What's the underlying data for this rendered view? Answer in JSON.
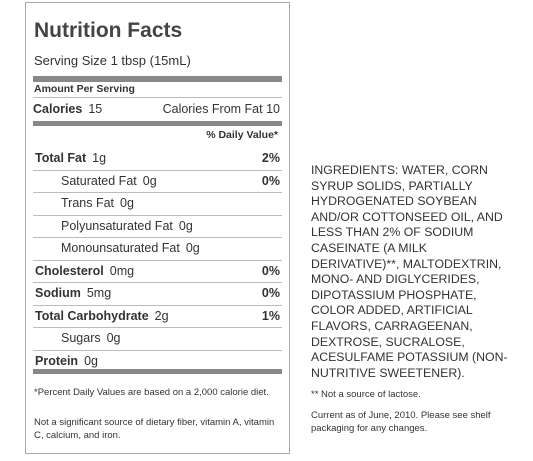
{
  "label": {
    "title": "Nutrition Facts",
    "serving_size": "Serving Size 1 tbsp (15mL)",
    "amount_per_serving": "Amount Per Serving",
    "calories": {
      "name": "Calories",
      "amount": "15"
    },
    "calories_from_fat": "Calories From Fat 10",
    "daily_value_header": "% Daily Value*",
    "nutrients": [
      {
        "name": "Total Fat",
        "amount": "1g",
        "dv": "2%",
        "subs": [
          {
            "name": "Saturated Fat",
            "amount": "0g",
            "dv": "0%"
          },
          {
            "name": "Trans Fat",
            "amount": "0g"
          },
          {
            "name": "Polyunsaturated Fat",
            "amount": "0g"
          },
          {
            "name": "Monounsaturated Fat",
            "amount": "0g"
          }
        ]
      },
      {
        "name": "Cholesterol",
        "amount": "0mg",
        "dv": "0%"
      },
      {
        "name": "Sodium",
        "amount": "5mg",
        "dv": "0%"
      },
      {
        "name": "Total Carbohydrate",
        "amount": "2g",
        "dv": "1%",
        "subs": [
          {
            "name": "Sugars",
            "amount": "0g"
          }
        ]
      },
      {
        "name": "Protein",
        "amount": "0g"
      }
    ],
    "footnote": "*Percent Daily Values are based on a 2,000 calorie diet.",
    "note": "Not a significant source of dietary fiber, vitamin A, vitamin C, calcium, and iron."
  },
  "ingredients": {
    "text": "INGREDIENTS: WATER, CORN SYRUP SOLIDS, PARTIALLY HYDROGENATED SOYBEAN AND/OR COTTONSEED OIL, AND LESS THAN 2% OF SODIUM CASEINATE (A MILK DERIVATIVE)**, MALTODEXTRIN, MONO- AND DIGLYCERIDES, DIPOTASSIUM PHOSPHATE, COLOR ADDED, ARTIFICIAL FLAVORS, CARRAGEENAN, DEXTROSE, SUCRALOSE, ACESULFAME POTASSIUM (NON-NUTRITIVE SWEETENER).",
    "lactose_note": "** Not a source of lactose.",
    "current_as_of": "Current as of June, 2010. Please see shelf packaging for any changes."
  }
}
